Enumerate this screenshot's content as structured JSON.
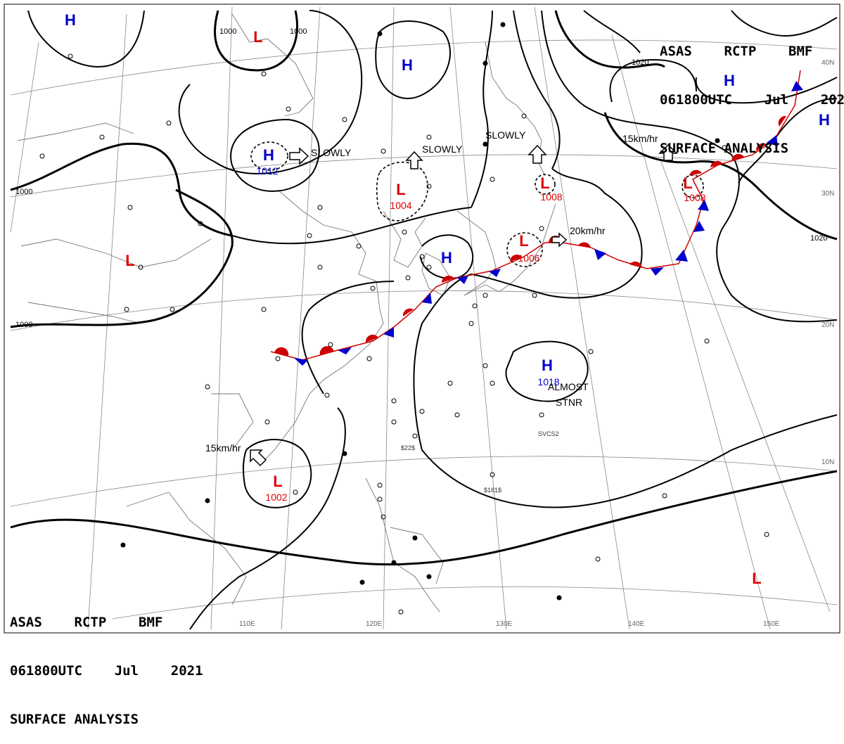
{
  "header": {
    "line1": "ASAS    RCTP    BMF",
    "line2": "061800UTC    Jul    2021",
    "line3": "SURFACE ANALYSIS"
  },
  "centers": {
    "h_nw": {
      "type": "H",
      "value": ""
    },
    "l_north": {
      "type": "L",
      "value": ""
    },
    "h_north": {
      "type": "H",
      "value": ""
    },
    "h_1012": {
      "type": "H",
      "value": "1012"
    },
    "l_1004": {
      "type": "L",
      "value": "1004"
    },
    "l_1008": {
      "type": "L",
      "value": "1008"
    },
    "l_1006": {
      "type": "L",
      "value": "1006"
    },
    "h_taiwan": {
      "type": "H",
      "value": ""
    },
    "l_west": {
      "type": "L",
      "value": ""
    },
    "h_1018": {
      "type": "H",
      "value": "1018"
    },
    "l_1002": {
      "type": "L",
      "value": "1002"
    },
    "l_ne_1008": {
      "type": "L",
      "value": "1008"
    },
    "h_ne1": {
      "type": "H",
      "value": ""
    },
    "h_ne2": {
      "type": "H",
      "value": ""
    },
    "l_se": {
      "type": "L",
      "value": ""
    }
  },
  "motion": {
    "slowly_1": "SLOWLY",
    "slowly_2": "SLOWLY",
    "slowly_3": "SLOWLY",
    "speed_20": "20km/hr",
    "speed_15_ne": "15km/hr",
    "speed_15_sw": "15km/hr",
    "almost_1": "ALMOST",
    "almost_2": "STNR"
  },
  "isobars": {
    "l1000_nw_a": "1000",
    "l1000_nw_b": "1000",
    "l1000_w": "1000",
    "l1000_sw": "1000",
    "l1020_ne": "1020",
    "l1020_e": "1020"
  },
  "grid_labels": {
    "lon": [
      "110E",
      "120E",
      "130E",
      "140E",
      "150E"
    ],
    "lat": [
      "40N",
      "30N",
      "20N",
      "10N"
    ]
  },
  "station_text": {
    "s1": "SVCS2",
    "s2": "$181$",
    "s3": "$22$"
  },
  "colors": {
    "high": "#0000cc",
    "low": "#dd0000",
    "warm_front": "#dd0000",
    "cold_front": "#0000cc"
  }
}
